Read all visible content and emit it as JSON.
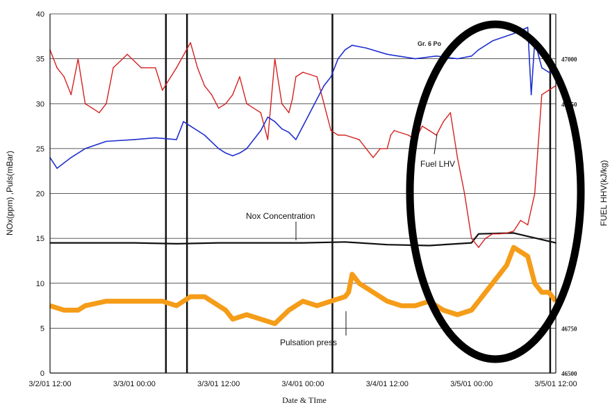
{
  "chart_data": {
    "type": "line",
    "xlabel": "Date & TIme",
    "ylabel": "NOx(ppm) ,Puls(mBar)",
    "y2label": "FUEL HHV(kJ/kg)",
    "ylim": [
      0,
      40
    ],
    "y2lim": [
      46500,
      47000
    ],
    "grid": true,
    "x_ticks": [
      "3/2/01 12:00",
      "3/3/01 00:00",
      "3/3/01 12:00",
      "3/4/01 00:00",
      "3/4/01 12:00",
      "3/5/01 00:00",
      "3/5/01 12:00"
    ],
    "y_ticks": [
      "0",
      "5",
      "10",
      "15",
      "20",
      "25",
      "30",
      "35",
      "40"
    ],
    "y2_ticks": [
      "46500",
      "46750",
      "",
      "",
      "",
      "",
      "46750",
      "47000"
    ],
    "x_hours": [
      0,
      12,
      24,
      36,
      48,
      60,
      72
    ],
    "annotations": [
      "Nox Concentration",
      "Fuel LHV",
      "Pulsation press",
      "Gr. 6 Po"
    ],
    "series": [
      {
        "name": "Gr. 6 Po",
        "color": "#1f2fcf",
        "axis": "left",
        "x": [
          0,
          1,
          3,
          5,
          8,
          12,
          15,
          18,
          19,
          20,
          22,
          24,
          25,
          26,
          27,
          28,
          30,
          31,
          32,
          33,
          34,
          35,
          36,
          37,
          38,
          39,
          40,
          41,
          42,
          43,
          45,
          48,
          52,
          55,
          56,
          58,
          60,
          61,
          63,
          66,
          68,
          68.5,
          69,
          70,
          71,
          72
        ],
        "y": [
          24,
          22.8,
          24,
          25,
          25.8,
          26,
          26.2,
          26,
          28,
          27.5,
          26.5,
          25,
          24.5,
          24.2,
          24.5,
          25,
          27,
          28.5,
          28,
          27.2,
          26.8,
          26,
          27.5,
          29,
          30.5,
          32,
          33,
          35,
          36,
          36.5,
          36.2,
          35.5,
          35,
          35.3,
          35.2,
          35,
          35.3,
          36,
          37,
          37.8,
          38.5,
          31,
          37,
          34,
          33.5,
          33.5
        ]
      },
      {
        "name": "Fuel LHV",
        "color": "#d42020",
        "axis": "left",
        "x": [
          0,
          1,
          2,
          3,
          4,
          5,
          6,
          7,
          8,
          9,
          11,
          13,
          15,
          16,
          18,
          20,
          21,
          22,
          23,
          24,
          25,
          26,
          27,
          28,
          30,
          31,
          32,
          33,
          34,
          34.5,
          35,
          36,
          38,
          40,
          41,
          42,
          44,
          46,
          47,
          48,
          48.5,
          49,
          51,
          52,
          53,
          54,
          55,
          56,
          57,
          58,
          59,
          60,
          61,
          62,
          63,
          64,
          65,
          66,
          67,
          68,
          69,
          70,
          71,
          72
        ],
        "y": [
          36,
          34,
          33,
          31,
          35,
          30,
          29.5,
          29,
          30,
          34,
          35.5,
          34,
          34,
          31.5,
          34,
          36.8,
          34,
          32,
          31,
          29.5,
          30,
          31,
          33,
          30,
          29,
          26,
          35,
          30,
          29,
          30.5,
          33,
          33.5,
          33,
          27,
          26.5,
          26.5,
          26,
          24,
          25,
          25,
          26.5,
          27,
          26.5,
          26,
          27.5,
          27,
          26.5,
          28,
          29,
          24,
          20,
          15,
          14,
          15,
          15.5,
          15.5,
          15.6,
          15.8,
          17,
          16.5,
          20,
          31,
          31.5,
          32
        ]
      },
      {
        "name": "Nox Concentration",
        "color": "#111111",
        "axis": "left",
        "x": [
          0,
          6,
          12,
          18,
          24,
          30,
          36,
          42,
          48,
          54,
          60,
          61,
          66,
          72
        ],
        "y": [
          14.5,
          14.5,
          14.5,
          14.4,
          14.5,
          14.5,
          14.5,
          14.6,
          14.3,
          14.2,
          14.5,
          15.5,
          15.6,
          14.5
        ]
      },
      {
        "name": "Pulsation press",
        "color": "#f59c18",
        "axis": "left",
        "x": [
          0,
          2,
          4,
          5,
          8,
          12,
          16,
          18,
          20,
          22,
          24,
          25,
          26,
          28,
          30,
          32,
          34,
          36,
          38,
          40,
          42,
          42.5,
          43,
          44,
          46,
          48,
          50,
          52,
          54,
          56,
          58,
          60,
          61,
          62,
          64,
          65,
          66,
          68,
          69,
          70,
          71,
          72
        ],
        "y": [
          7.5,
          7,
          7,
          7.5,
          8,
          8,
          8,
          7.5,
          8.5,
          8.5,
          7.5,
          7,
          6,
          6.5,
          6,
          5.5,
          7,
          8,
          7.5,
          8,
          8.5,
          9,
          11,
          10,
          9,
          8,
          7.5,
          7.5,
          8,
          7,
          6.5,
          7,
          8,
          9,
          11,
          12,
          14,
          13,
          10,
          9,
          9,
          8
        ]
      }
    ]
  }
}
